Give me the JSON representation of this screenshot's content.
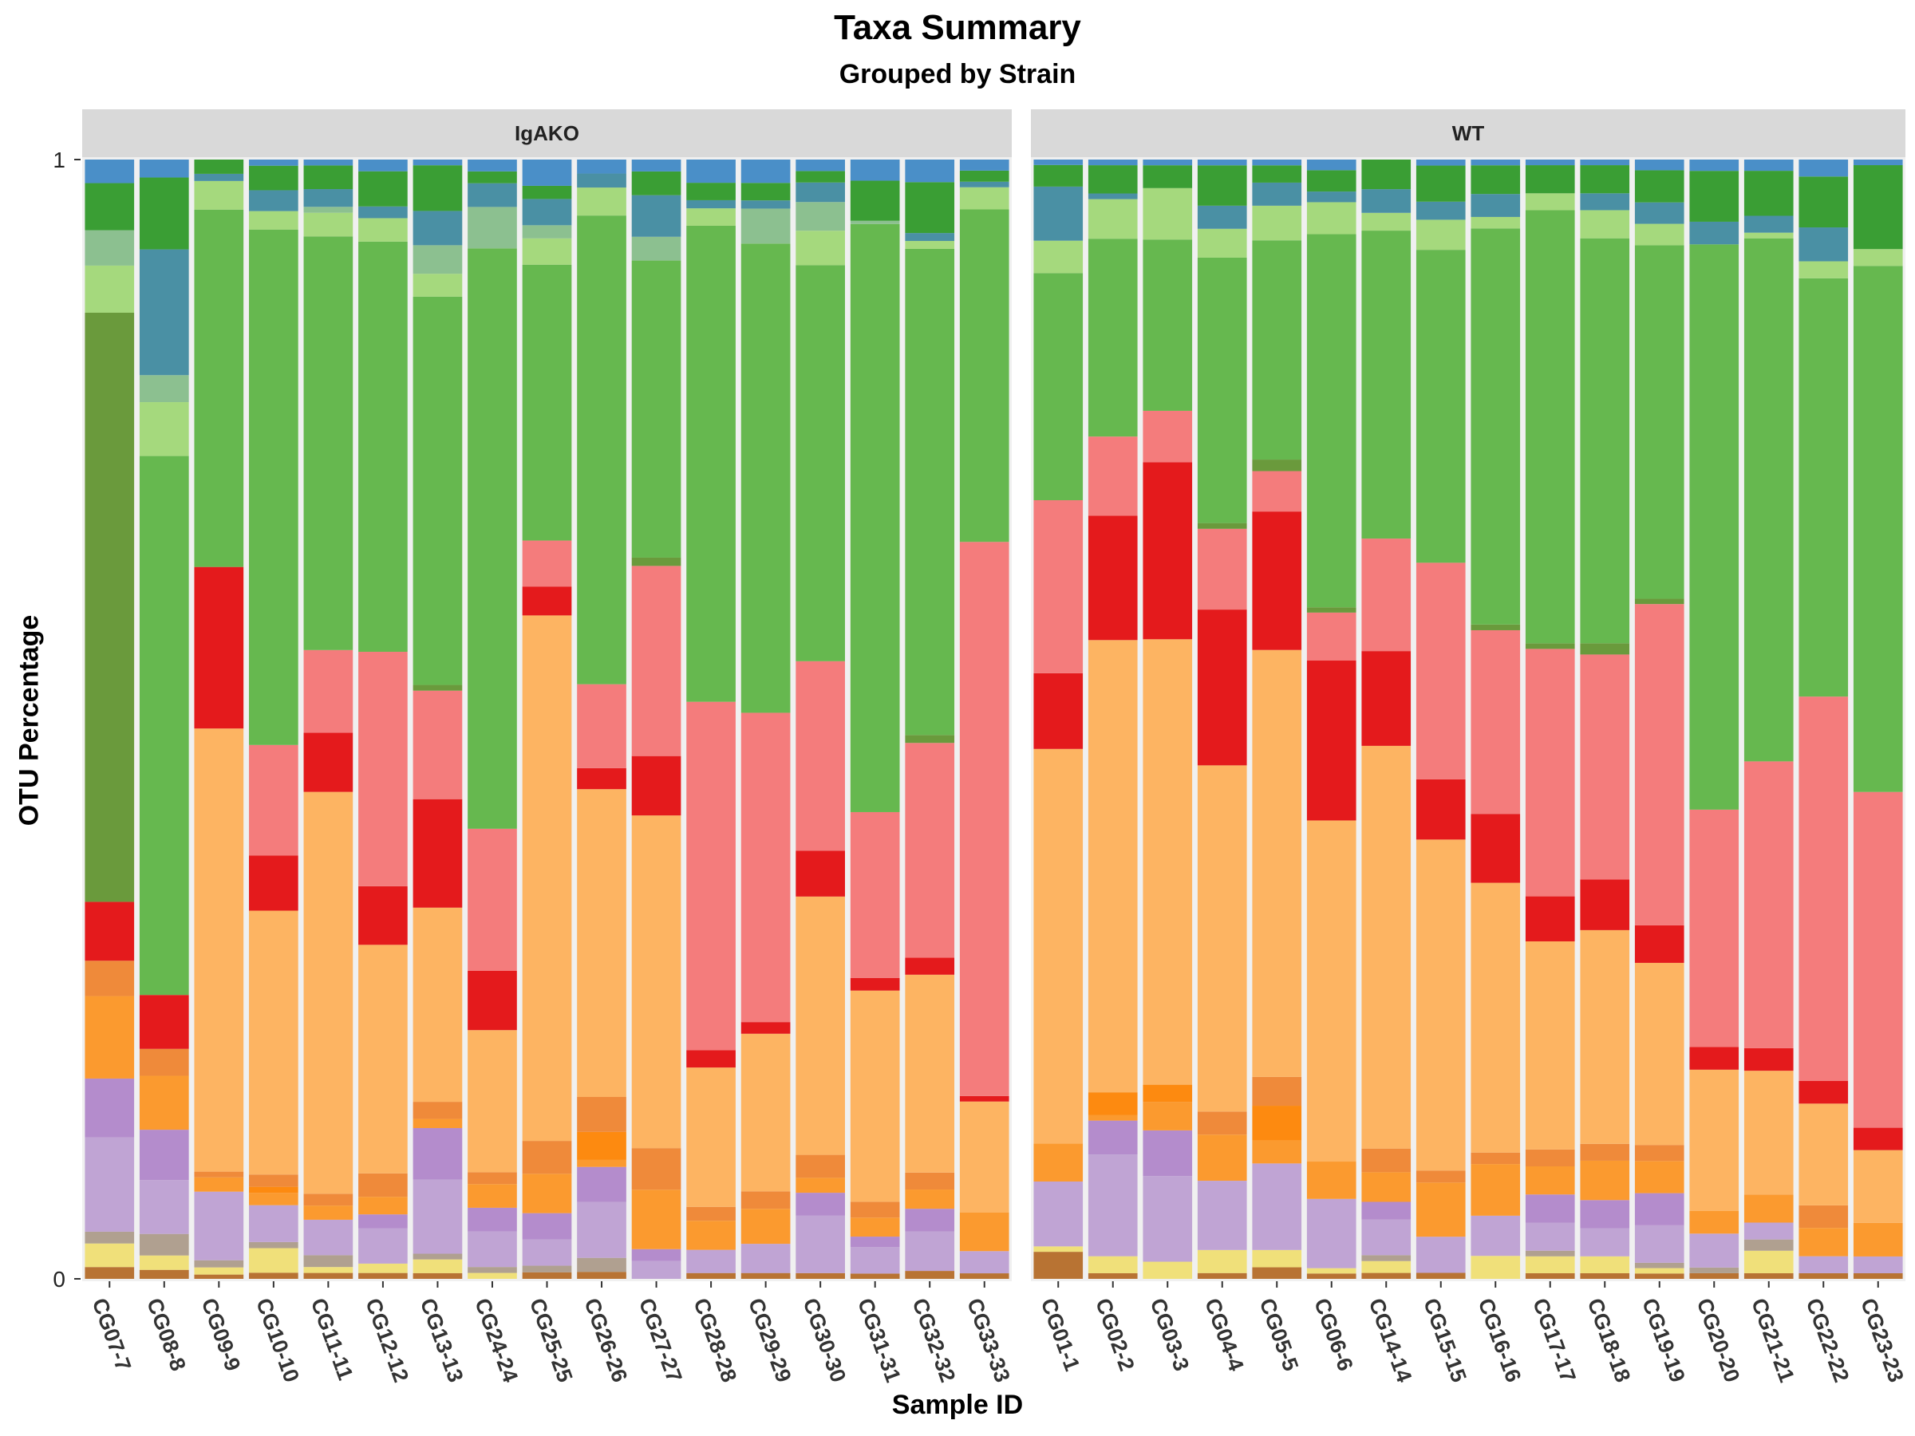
{
  "chart_data": {
    "type": "bar",
    "stacked": true,
    "title": "Taxa Summary",
    "subtitle": "Grouped by Strain",
    "xlabel": "Sample ID",
    "ylabel": "OTU Percentage",
    "ylim": [
      0,
      1
    ],
    "yticks": [
      "0",
      "1"
    ],
    "grid": false,
    "legend": "none",
    "stack_order": "bottom-to-top",
    "taxa_colors": [
      "#b87333",
      "#f0e07a",
      "#b0a090",
      "#c0a4d4",
      "#b48ccc",
      "#fb9a2f",
      "#fd8a10",
      "#ef8a3a",
      "#fdb462",
      "#e41a1c",
      "#f47c7c",
      "#e5e5e5",
      "#6a9a3c",
      "#66b84f",
      "#a5d97d",
      "#8cc090",
      "#4a90a4",
      "#3a9e34",
      "#4a8fc8",
      "#a6cde3"
    ],
    "panels": [
      {
        "name": "IgAKO",
        "samples": [
          "CG07-7",
          "CG08-8",
          "CG09-9",
          "CG10-10",
          "CG11-11",
          "CG12-12",
          "CG13-13",
          "CG24-24",
          "CG25-25",
          "CG26-26",
          "CG27-27",
          "CG28-28",
          "CG29-29",
          "CG30-30",
          "CG31-31",
          "CG32-32",
          "CG33-33"
        ],
        "values": [
          [
            0.005,
            0.01,
            0.005,
            0.04,
            0.025,
            0.035,
            0.0,
            0.015,
            0.0,
            0.025,
            0.0,
            0.0,
            0.25,
            0.0,
            0.02,
            0.015,
            0.0,
            0.02,
            0.01,
            0.0
          ],
          [
            0.005,
            0.008,
            0.012,
            0.03,
            0.028,
            0.03,
            0.0,
            0.015,
            0.0,
            0.03,
            0.0,
            0.0,
            0.0,
            0.3,
            0.03,
            0.015,
            0.07,
            0.04,
            0.01,
            0.0
          ],
          [
            0.003,
            0.005,
            0.005,
            0.048,
            0.0,
            0.01,
            0.0,
            0.004,
            0.31,
            0.113,
            0.0,
            0.0,
            0.0,
            0.25,
            0.02,
            0.0,
            0.005,
            0.01,
            0.0,
            0.0
          ],
          [
            0.005,
            0.02,
            0.005,
            0.03,
            0.0,
            0.01,
            0.005,
            0.01,
            0.215,
            0.045,
            0.09,
            0.0,
            0.0,
            0.42,
            0.015,
            0.0,
            0.017,
            0.02,
            0.005,
            0.0
          ],
          [
            0.005,
            0.005,
            0.01,
            0.03,
            0.0,
            0.012,
            0.0,
            0.01,
            0.34,
            0.05,
            0.07,
            0.0,
            0.0,
            0.35,
            0.02,
            0.005,
            0.015,
            0.02,
            0.005,
            0.0
          ],
          [
            0.005,
            0.008,
            0.0,
            0.03,
            0.012,
            0.015,
            0.0,
            0.02,
            0.195,
            0.05,
            0.2,
            0.0,
            0.0,
            0.35,
            0.02,
            0.0,
            0.01,
            0.03,
            0.01,
            0.0
          ],
          [
            0.005,
            0.012,
            0.005,
            0.065,
            0.045,
            0.008,
            0.0,
            0.015,
            0.17,
            0.095,
            0.095,
            0.0,
            0.005,
            0.34,
            0.02,
            0.025,
            0.03,
            0.04,
            0.005,
            0.0
          ],
          [
            0.0,
            0.005,
            0.005,
            0.03,
            0.02,
            0.02,
            0.0,
            0.01,
            0.12,
            0.05,
            0.12,
            0.0,
            0.0,
            0.49,
            0.0,
            0.035,
            0.02,
            0.01,
            0.01,
            0.0
          ],
          [
            0.005,
            0.0,
            0.005,
            0.02,
            0.02,
            0.03,
            0.0,
            0.025,
            0.4,
            0.022,
            0.035,
            0.0,
            0.0,
            0.21,
            0.02,
            0.01,
            0.02,
            0.01,
            0.02,
            0.0
          ],
          [
            0.005,
            0.0,
            0.01,
            0.04,
            0.025,
            0.005,
            0.02,
            0.025,
            0.22,
            0.015,
            0.06,
            0.0,
            0.0,
            0.335,
            0.02,
            0.0,
            0.01,
            0.0,
            0.01,
            0.0
          ],
          [
            0.0,
            0.0,
            0.0,
            0.015,
            0.01,
            0.05,
            0.0,
            0.035,
            0.28,
            0.05,
            0.16,
            0.0,
            0.007,
            0.25,
            0.0,
            0.02,
            0.035,
            0.02,
            0.01,
            0.0
          ],
          [
            0.005,
            0.0,
            0.0,
            0.02,
            0.0,
            0.025,
            0.0,
            0.012,
            0.12,
            0.015,
            0.3,
            0.0,
            0.0,
            0.41,
            0.015,
            0.0,
            0.007,
            0.015,
            0.02,
            0.0
          ],
          [
            0.005,
            0.0,
            0.0,
            0.025,
            0.0,
            0.03,
            0.0,
            0.015,
            0.135,
            0.01,
            0.265,
            0.0,
            0.0,
            0.402,
            0.0,
            0.03,
            0.007,
            0.015,
            0.02,
            0.0
          ],
          [
            0.005,
            0.0,
            0.0,
            0.05,
            0.02,
            0.013,
            0.0,
            0.02,
            0.225,
            0.04,
            0.165,
            0.0,
            0.0,
            0.345,
            0.03,
            0.025,
            0.017,
            0.01,
            0.01,
            0.0
          ],
          [
            0.005,
            0.0,
            0.0,
            0.025,
            0.01,
            0.018,
            0.0,
            0.015,
            0.2,
            0.012,
            0.157,
            0.0,
            0.0,
            0.557,
            0.0,
            0.003,
            0.0,
            0.038,
            0.02,
            0.0
          ],
          [
            0.007,
            0.0,
            0.0,
            0.035,
            0.02,
            0.017,
            0.0,
            0.015,
            0.175,
            0.015,
            0.19,
            0.0,
            0.007,
            0.43,
            0.007,
            0.0,
            0.007,
            0.045,
            0.02,
            0.0
          ],
          [
            0.005,
            0.0,
            0.0,
            0.02,
            0.0,
            0.035,
            0.0,
            0.0,
            0.1,
            0.005,
            0.5,
            0.0,
            0.0,
            0.3,
            0.02,
            0.0,
            0.005,
            0.01,
            0.01,
            0.0
          ]
        ]
      },
      {
        "name": "WT",
        "samples": [
          "CG01-1",
          "CG02-2",
          "CG03-3",
          "CG04-4",
          "CG05-5",
          "CG06-6",
          "CG14-14",
          "CG15-15",
          "CG16-16",
          "CG17-17",
          "CG18-18",
          "CG19-19",
          "CG20-20",
          "CG21-21",
          "CG22-22",
          "CG23-23"
        ],
        "values": [
          [
            0.025,
            0.005,
            0.0,
            0.06,
            0.0,
            0.035,
            0.0,
            0.0,
            0.365,
            0.07,
            0.16,
            0.0,
            0.0,
            0.21,
            0.03,
            0.0,
            0.05,
            0.02,
            0.005,
            0.0
          ],
          [
            0.005,
            0.015,
            0.0,
            0.09,
            0.03,
            0.005,
            0.02,
            0.0,
            0.4,
            0.11,
            0.07,
            0.0,
            0.0,
            0.175,
            0.035,
            0.0,
            0.005,
            0.025,
            0.005,
            0.0
          ],
          [
            0.0,
            0.015,
            0.0,
            0.075,
            0.04,
            0.025,
            0.015,
            0.0,
            0.39,
            0.155,
            0.045,
            0.0,
            0.0,
            0.15,
            0.045,
            0.0,
            0.0,
            0.02,
            0.005,
            0.0
          ],
          [
            0.005,
            0.02,
            0.0,
            0.06,
            0.0,
            0.04,
            0.0,
            0.02,
            0.3,
            0.135,
            0.07,
            0.0,
            0.005,
            0.23,
            0.025,
            0.0,
            0.02,
            0.035,
            0.005,
            0.0
          ],
          [
            0.01,
            0.015,
            0.0,
            0.075,
            0.0,
            0.02,
            0.03,
            0.025,
            0.37,
            0.12,
            0.035,
            0.0,
            0.01,
            0.19,
            0.03,
            0.0,
            0.02,
            0.015,
            0.005,
            0.0
          ],
          [
            0.005,
            0.005,
            0.0,
            0.065,
            0.0,
            0.035,
            0.0,
            0.0,
            0.32,
            0.15,
            0.045,
            0.0,
            0.005,
            0.35,
            0.03,
            0.0,
            0.01,
            0.02,
            0.01,
            0.0
          ],
          [
            0.005,
            0.01,
            0.005,
            0.03,
            0.015,
            0.025,
            0.0,
            0.02,
            0.34,
            0.08,
            0.095,
            0.0,
            0.0,
            0.26,
            0.015,
            0.0,
            0.02,
            0.025,
            0.0,
            0.0
          ],
          [
            0.005,
            0.0,
            0.0,
            0.03,
            0.0,
            0.045,
            0.0,
            0.01,
            0.275,
            0.05,
            0.18,
            0.0,
            0.0,
            0.26,
            0.025,
            0.0,
            0.015,
            0.03,
            0.005,
            0.0
          ],
          [
            0.0,
            0.02,
            0.0,
            0.035,
            0.0,
            0.045,
            0.0,
            0.01,
            0.235,
            0.06,
            0.16,
            0.0,
            0.005,
            0.345,
            0.01,
            0.0,
            0.02,
            0.025,
            0.005,
            0.0
          ],
          [
            0.005,
            0.015,
            0.005,
            0.025,
            0.025,
            0.025,
            0.0,
            0.015,
            0.185,
            0.04,
            0.22,
            0.0,
            0.005,
            0.385,
            0.015,
            0.0,
            0.0,
            0.025,
            0.005,
            0.0
          ],
          [
            0.005,
            0.015,
            0.0,
            0.025,
            0.025,
            0.035,
            0.0,
            0.015,
            0.19,
            0.045,
            0.2,
            0.0,
            0.01,
            0.36,
            0.025,
            0.0,
            0.015,
            0.025,
            0.005,
            0.0
          ],
          [
            0.005,
            0.005,
            0.005,
            0.035,
            0.03,
            0.03,
            0.0,
            0.015,
            0.17,
            0.035,
            0.3,
            0.0,
            0.005,
            0.33,
            0.02,
            0.0,
            0.02,
            0.03,
            0.01,
            0.0
          ],
          [
            0.005,
            0.0,
            0.005,
            0.03,
            0.0,
            0.02,
            0.0,
            0.0,
            0.125,
            0.02,
            0.21,
            0.0,
            0.0,
            0.5,
            0.0,
            0.0,
            0.02,
            0.045,
            0.01,
            0.0
          ],
          [
            0.005,
            0.02,
            0.01,
            0.015,
            0.0,
            0.025,
            0.0,
            0.0,
            0.11,
            0.02,
            0.255,
            0.0,
            0.0,
            0.465,
            0.005,
            0.0,
            0.015,
            0.04,
            0.01,
            0.0
          ],
          [
            0.005,
            0.0,
            0.0,
            0.015,
            0.0,
            0.025,
            0.0,
            0.02,
            0.09,
            0.02,
            0.34,
            0.0,
            0.0,
            0.37,
            0.015,
            0.0,
            0.03,
            0.045,
            0.015,
            0.0
          ],
          [
            0.005,
            0.0,
            0.0,
            0.015,
            0.0,
            0.03,
            0.0,
            0.0,
            0.065,
            0.02,
            0.3,
            0.0,
            0.0,
            0.47,
            0.015,
            0.0,
            0.0,
            0.075,
            0.005,
            0.0
          ]
        ]
      }
    ]
  }
}
